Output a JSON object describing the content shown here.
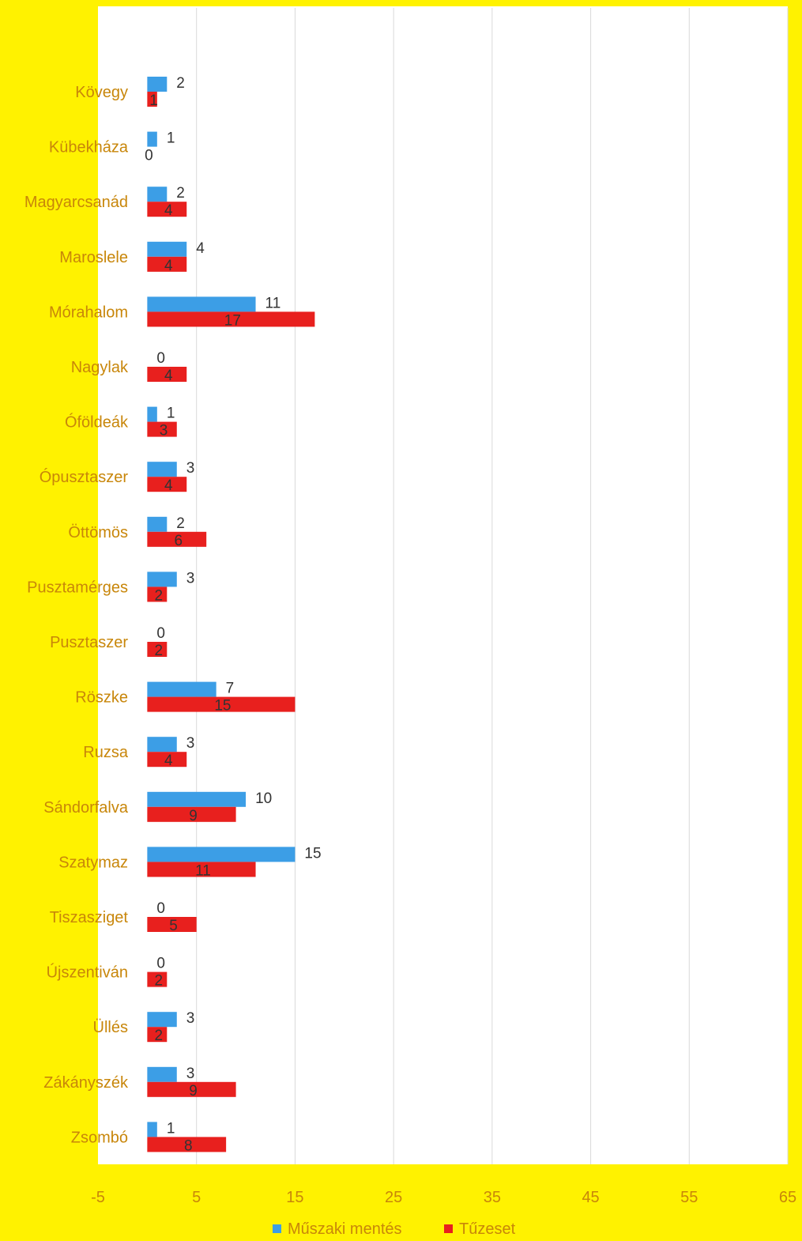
{
  "colors": {
    "page_background": "#FFF200",
    "plot_background": "#FFFFFF",
    "series_1": "#3C9EE6",
    "series_2": "#E8201E",
    "label_text": "#C8860A",
    "gridline": "#D9D9D9"
  },
  "chart_data": {
    "type": "bar",
    "orientation": "horizontal",
    "title": "",
    "xlabel": "",
    "ylabel": "",
    "xlim": [
      -5,
      65
    ],
    "xticks": [
      -5,
      5,
      15,
      25,
      35,
      45,
      55,
      65
    ],
    "grid": true,
    "legend_position": "bottom",
    "categories": [
      "Kövegy",
      "Kübekháza",
      "Magyarcsanád",
      "Maroslele",
      "Mórahalom",
      "Nagylak",
      "Óföldeák",
      "Ópusztaszer",
      "Öttömös",
      "Pusztamérges",
      "Pusztaszer",
      "Röszke",
      "Ruzsa",
      "Sándorfalva",
      "Szatymaz",
      "Tiszasziget",
      "Újszentiván",
      "Üllés",
      "Zákányszék",
      "Zsombó"
    ],
    "series": [
      {
        "name": "Műszaki mentés",
        "color": "#3C9EE6",
        "values": [
          2,
          1,
          2,
          4,
          11,
          0,
          1,
          3,
          2,
          3,
          0,
          7,
          3,
          10,
          15,
          0,
          0,
          3,
          3,
          1
        ]
      },
      {
        "name": "Tűzeset",
        "color": "#E8201E",
        "values": [
          1,
          0,
          4,
          4,
          17,
          4,
          3,
          4,
          6,
          2,
          2,
          15,
          4,
          9,
          11,
          5,
          2,
          2,
          9,
          8
        ]
      }
    ]
  }
}
